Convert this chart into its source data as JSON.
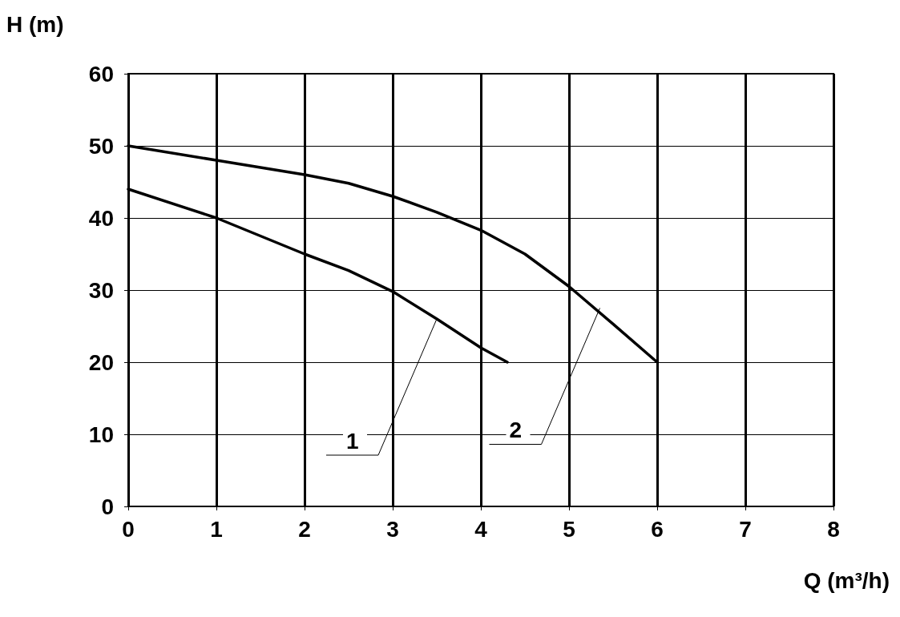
{
  "chart_data": {
    "type": "line",
    "xlabel": "Q (m³/h)",
    "ylabel": "H (m)",
    "xlim": [
      0,
      8
    ],
    "xticks": [
      0,
      1,
      2,
      3,
      4,
      5,
      6,
      7,
      8
    ],
    "ylim": [
      0,
      60
    ],
    "yticks": [
      0,
      10,
      20,
      30,
      40,
      50,
      60
    ],
    "grid": true,
    "marker": "none",
    "line_style": "solid",
    "series": [
      {
        "color": "#000000",
        "x": [
          0,
          1,
          2,
          2.5,
          3,
          3.5,
          4,
          4.3
        ],
        "values": [
          44,
          40,
          35,
          32.7,
          29.8,
          26,
          22,
          20
        ]
      },
      {
        "color": "#000000",
        "x": [
          0,
          1,
          2,
          2.5,
          3,
          3.5,
          4,
          4.5,
          5,
          5.5,
          6
        ],
        "values": [
          50,
          48,
          46,
          44.8,
          43,
          40.8,
          38.3,
          35,
          30.5,
          25.3,
          20
        ]
      }
    ],
    "annotations": [
      {
        "text": "1",
        "x": 3.5,
        "y": 26
      },
      {
        "text": "2",
        "x": 5.35,
        "y": 27.5
      }
    ]
  }
}
